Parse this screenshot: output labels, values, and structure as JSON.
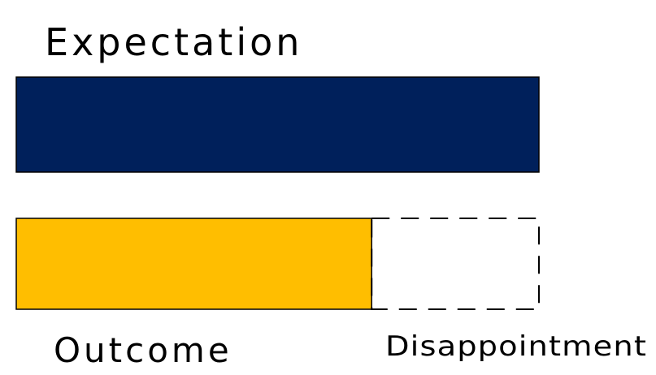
{
  "labels": {
    "expectation": "Expectation",
    "outcome": "Outcome",
    "disappointment": "Disappointment"
  },
  "chart_data": {
    "type": "bar",
    "categories": [
      "Expectation",
      "Outcome"
    ],
    "values": [
      100,
      68
    ],
    "shortfall": 32,
    "shortfall_label": "Disappointment",
    "colors": {
      "expectation": "#00205b",
      "outcome": "#ffbe00",
      "outline": "#000000"
    }
  }
}
